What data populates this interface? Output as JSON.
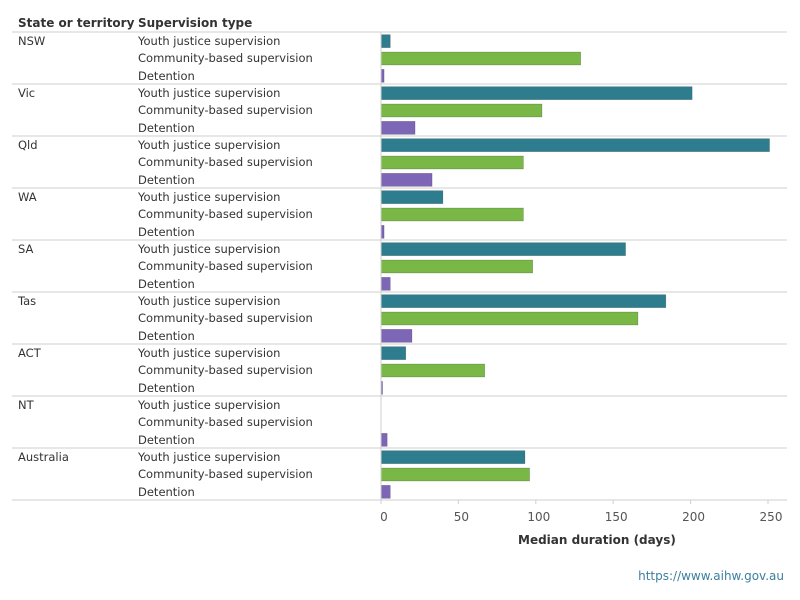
{
  "header": {
    "state_col": "State or territory",
    "type_col": "Supervision type"
  },
  "colors": {
    "Youth justice supervision": "#2e7d8e",
    "Community-based supervision": "#79b747",
    "Detention": "#7d66b6"
  },
  "chart_data": {
    "type": "bar",
    "orientation": "horizontal",
    "xlabel": "Median duration (days)",
    "xlim": [
      0,
      260
    ],
    "xticks": [
      0,
      50,
      100,
      150,
      200,
      250
    ],
    "supervision_types": [
      "Youth justice supervision",
      "Community-based supervision",
      "Detention"
    ],
    "groups": [
      {
        "state": "NSW",
        "values": [
          6,
          129,
          2
        ]
      },
      {
        "state": "Vic",
        "values": [
          201,
          104,
          22
        ]
      },
      {
        "state": "Qld",
        "values": [
          251,
          92,
          33
        ]
      },
      {
        "state": "WA",
        "values": [
          40,
          92,
          2
        ]
      },
      {
        "state": "SA",
        "values": [
          158,
          98,
          6
        ]
      },
      {
        "state": "Tas",
        "values": [
          184,
          166,
          20
        ]
      },
      {
        "state": "ACT",
        "values": [
          16,
          67,
          1
        ]
      },
      {
        "state": "NT",
        "values": [
          0,
          0,
          4
        ]
      },
      {
        "state": "Australia",
        "values": [
          93,
          96,
          6
        ]
      }
    ]
  },
  "footer": {
    "link": "https://www.aihw.gov.au"
  }
}
